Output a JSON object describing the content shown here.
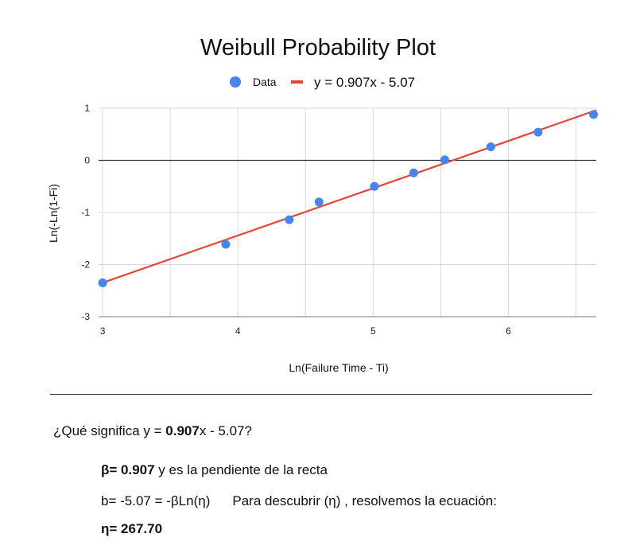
{
  "chart_data": {
    "type": "scatter",
    "title": "Weibull Probability Plot",
    "xlabel": "Ln(Failure Time - Ti)",
    "ylabel": "Ln(-Ln(1-Fi)",
    "xlim": [
      2.97,
      6.65
    ],
    "ylim": [
      -3,
      1
    ],
    "xticks": [
      3,
      4,
      5,
      6
    ],
    "yticks": [
      1,
      0,
      -1,
      -2,
      -3
    ],
    "legend": {
      "position": "top",
      "data_label": "Data",
      "trend_label": "y = 0.907x - 5.07"
    },
    "series": [
      {
        "name": "Data",
        "x": [
          3.0,
          3.91,
          4.38,
          4.6,
          5.01,
          5.3,
          5.53,
          5.87,
          6.22,
          6.63
        ],
        "y": [
          -2.35,
          -1.61,
          -1.14,
          -0.8,
          -0.5,
          -0.24,
          0.01,
          0.26,
          0.54,
          0.88
        ]
      }
    ],
    "trendline": {
      "slope": 0.907,
      "intercept": -5.07
    },
    "colors": {
      "points": "#4285F4",
      "trend": "#EA4335",
      "grid": "#D9D9D9",
      "zero": "#333333"
    }
  },
  "text": {
    "question_pre": "¿Qué significa y = ",
    "question_bold": "0.907",
    "question_post": "x - 5.07?",
    "beta_bold": "β= 0.907",
    "beta_rest": " y es la pendiente de la recta",
    "b_eq": "b= -5.07 = -βLn(η)",
    "b_note": "Para descubrir (η) , resolvemos la ecuación:",
    "eta_bold": "η= 267.70"
  }
}
